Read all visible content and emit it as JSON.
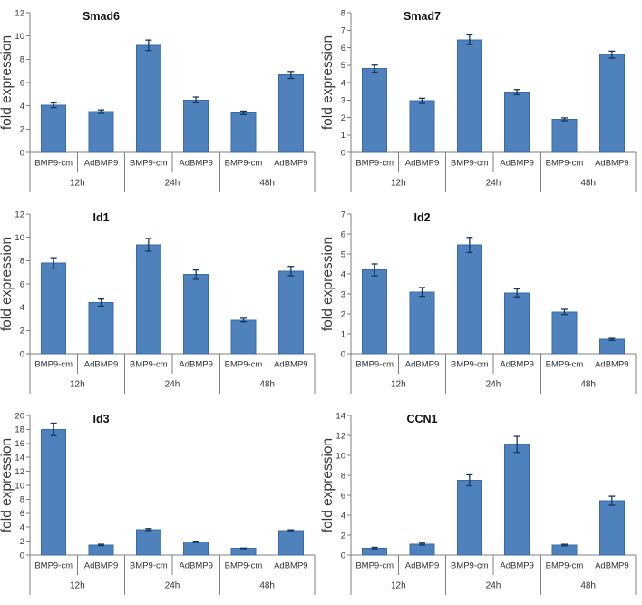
{
  "figure": {
    "ylabel": "fold expression",
    "colors": {
      "bar_fill": "#4F81BD",
      "bar_border": "#3A6BA5",
      "error_bar": "#17375E",
      "axis_line": "#7F7F7F",
      "tick_text": "#333333",
      "title_text": "#111111",
      "ylabel_text": "#3A3A3A",
      "background": "#FFFFFF"
    }
  },
  "chart_data": [
    {
      "type": "bar",
      "title": "Smad6",
      "ylabel": "fold expression",
      "ylim": [
        0,
        12
      ],
      "ytick_step": 2,
      "grid": false,
      "legend": "none",
      "groups": [
        "12h",
        "24h",
        "48h"
      ],
      "series_labels": [
        "BMP9-cm",
        "AdBMP9"
      ],
      "values": [
        4.05,
        3.5,
        9.2,
        4.5,
        3.4,
        6.65
      ],
      "errors": [
        0.2,
        0.15,
        0.45,
        0.25,
        0.15,
        0.3
      ]
    },
    {
      "type": "bar",
      "title": "Smad7",
      "ylabel": "fold expression",
      "ylim": [
        0,
        8
      ],
      "ytick_step": 1,
      "grid": false,
      "legend": "none",
      "groups": [
        "12h",
        "24h",
        "48h"
      ],
      "series_labels": [
        "BMP9-cm",
        "AdBMP9"
      ],
      "values": [
        4.8,
        2.95,
        6.45,
        3.45,
        1.9,
        5.6
      ],
      "errors": [
        0.2,
        0.15,
        0.28,
        0.15,
        0.08,
        0.2
      ]
    },
    {
      "type": "bar",
      "title": "Id1",
      "ylabel": "fold expression",
      "ylim": [
        0,
        12
      ],
      "ytick_step": 2,
      "grid": false,
      "legend": "none",
      "groups": [
        "12h",
        "24h",
        "48h"
      ],
      "series_labels": [
        "BMP9-cm",
        "AdBMP9"
      ],
      "values": [
        7.8,
        4.4,
        9.35,
        6.8,
        2.9,
        7.1
      ],
      "errors": [
        0.45,
        0.3,
        0.55,
        0.4,
        0.15,
        0.4
      ]
    },
    {
      "type": "bar",
      "title": "Id2",
      "ylabel": "fold expression",
      "ylim": [
        0,
        7
      ],
      "ytick_step": 1,
      "grid": false,
      "legend": "none",
      "groups": [
        "12h",
        "24h",
        "48h"
      ],
      "series_labels": [
        "BMP9-cm",
        "AdBMP9"
      ],
      "values": [
        4.2,
        3.1,
        5.45,
        3.05,
        2.1,
        0.72
      ],
      "errors": [
        0.3,
        0.22,
        0.38,
        0.2,
        0.13,
        0.05
      ]
    },
    {
      "type": "bar",
      "title": "Id3",
      "ylabel": "fold expression",
      "ylim": [
        0,
        20
      ],
      "ytick_step": 2,
      "grid": false,
      "legend": "none",
      "groups": [
        "12h",
        "24h",
        "48h"
      ],
      "series_labels": [
        "BMP9-cm",
        "AdBMP9"
      ],
      "values": [
        18.0,
        1.45,
        3.65,
        1.9,
        0.95,
        3.5
      ],
      "errors": [
        0.9,
        0.1,
        0.15,
        0.1,
        0.05,
        0.12
      ]
    },
    {
      "type": "bar",
      "title": "CCN1",
      "ylabel": "fold expression",
      "ylim": [
        0,
        14
      ],
      "ytick_step": 2,
      "grid": false,
      "legend": "none",
      "groups": [
        "12h",
        "24h",
        "48h"
      ],
      "series_labels": [
        "BMP9-cm",
        "AdBMP9"
      ],
      "values": [
        0.7,
        1.1,
        7.5,
        11.1,
        1.0,
        5.45
      ],
      "errors": [
        0.08,
        0.1,
        0.55,
        0.8,
        0.08,
        0.45
      ]
    }
  ]
}
